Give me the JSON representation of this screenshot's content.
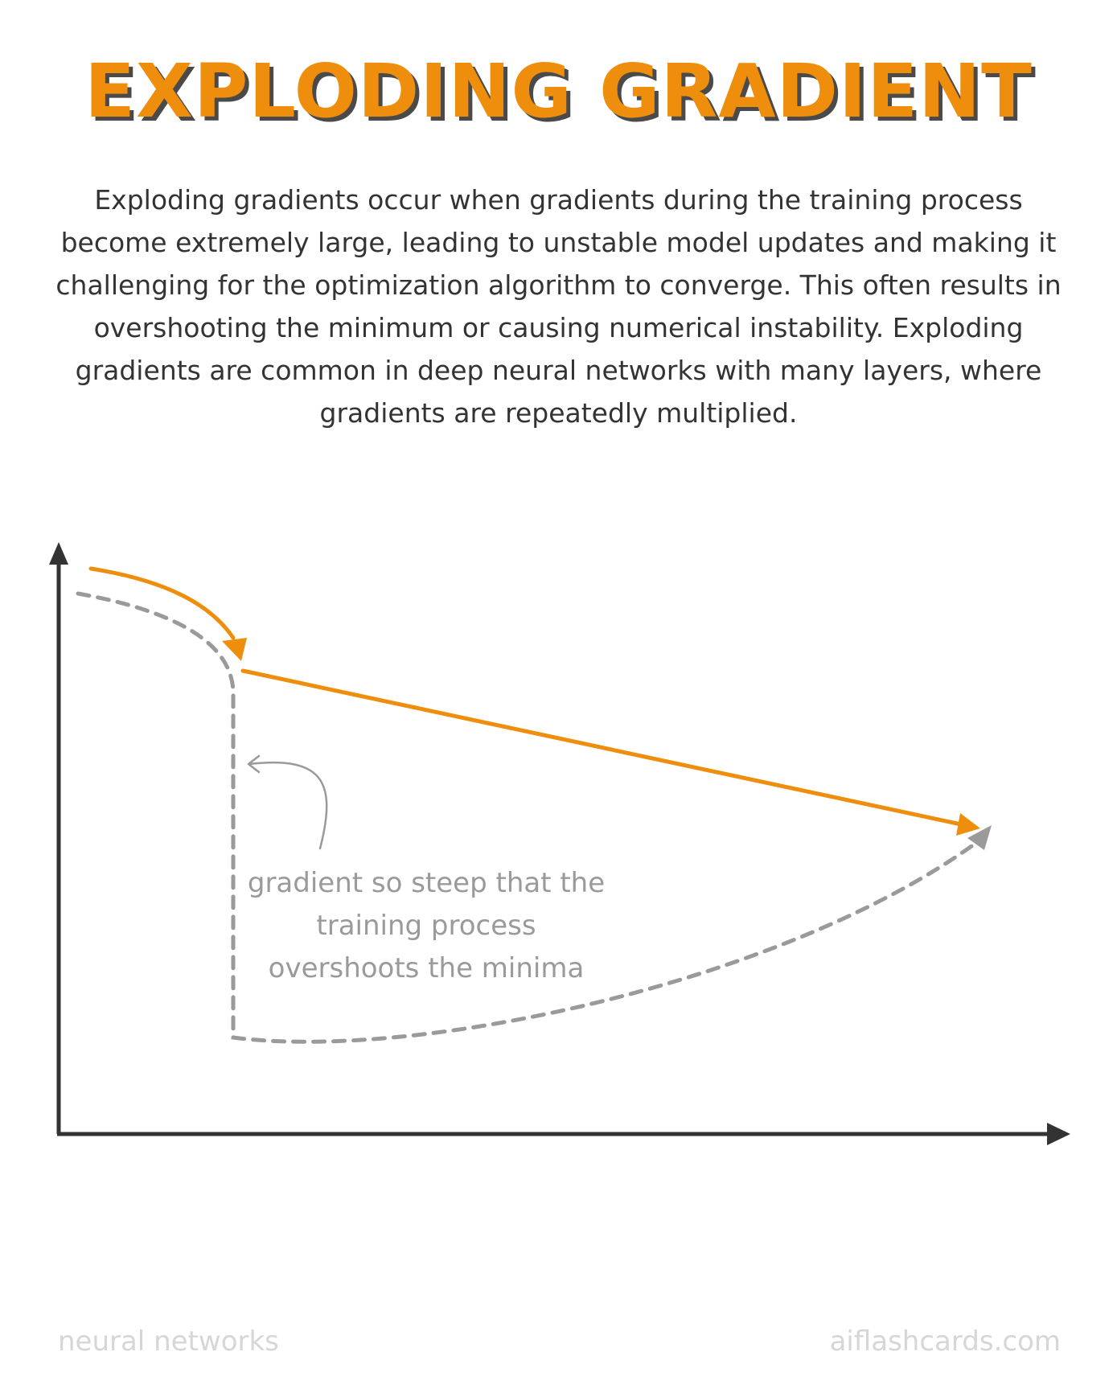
{
  "title": "EXPLODING GRADIENT",
  "description": "Exploding gradients occur when gradients during the training process become extremely large, leading to unstable model updates and making it challenging for the optimization algorithm to converge. This often results in overshooting the minimum or causing numerical instability. Exploding gradients are common in deep neural networks with many layers, where gradients are repeatedly multiplied.",
  "diagram": {
    "annotation": "gradient so steep that the training process overshoots the minima",
    "colors": {
      "update_path": "#ef8e0c",
      "loss_curve": "#9a9a9a",
      "axes": "#333333"
    }
  },
  "footer": {
    "category": "neural networks",
    "site": "aiflashcards.com"
  }
}
